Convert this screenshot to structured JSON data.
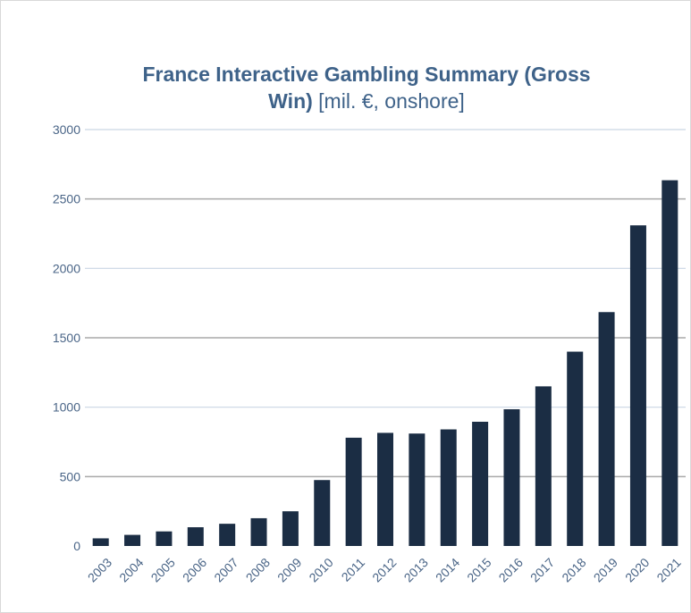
{
  "title": {
    "line1": "France Interactive Gambling Summary (Gross",
    "line2_bold": "Win)",
    "line2_rest": " [mil. €, onshore]"
  },
  "colors": {
    "bar": "#1b2d44",
    "title": "#3e6289",
    "tick_text": "#4a6587",
    "grid_light": "#c9d6e4",
    "grid_dark": "#a9a9a9"
  },
  "chart_data": {
    "type": "bar",
    "title": "France Interactive Gambling Summary (Gross Win) [mil. €, onshore]",
    "xlabel": "",
    "ylabel": "",
    "categories": [
      "2003",
      "2004",
      "2005",
      "2006",
      "2007",
      "2008",
      "2009",
      "2010",
      "2011",
      "2012",
      "2013",
      "2014",
      "2015",
      "2016",
      "2017",
      "2018",
      "2019",
      "2020",
      "2021"
    ],
    "values": [
      55,
      80,
      105,
      135,
      160,
      200,
      250,
      475,
      780,
      815,
      810,
      840,
      895,
      985,
      1150,
      1400,
      1685,
      2310,
      2635
    ],
    "ylim": [
      0,
      3000
    ],
    "yticks": [
      0,
      500,
      1000,
      1500,
      2000,
      2500,
      3000
    ],
    "grid": true,
    "legend": "none"
  }
}
